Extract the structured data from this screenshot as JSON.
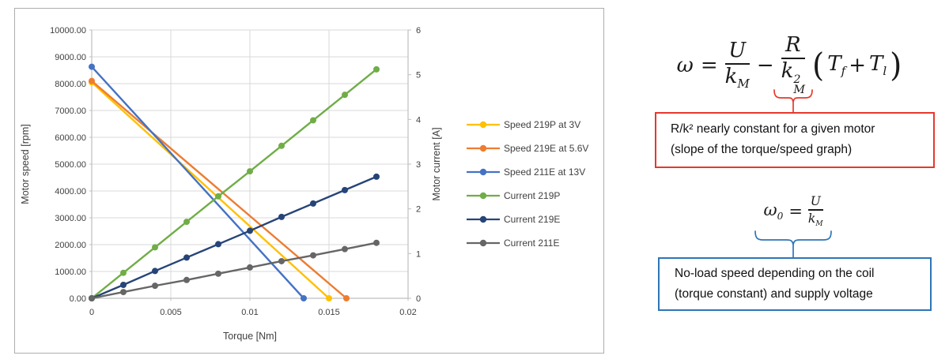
{
  "chart_data": {
    "type": "line",
    "title": "",
    "grid": true,
    "legend_position": "right",
    "x_axis": {
      "title": "Torque [Nm]",
      "min": 0,
      "max": 0.02,
      "tick_values": [
        0,
        0.005,
        0.01,
        0.015,
        0.02
      ],
      "tick_labels": [
        "0",
        "0.005",
        "0.01",
        "0.015",
        "0.02"
      ]
    },
    "left_axis": {
      "title": "Motor speed [rpm]",
      "min": 0,
      "max": 10000,
      "tick_values": [
        0,
        1000,
        2000,
        3000,
        4000,
        5000,
        6000,
        7000,
        8000,
        9000,
        10000
      ],
      "tick_labels": [
        "0.00",
        "1000.00",
        "2000.00",
        "3000.00",
        "4000.00",
        "5000.00",
        "6000.00",
        "7000.00",
        "8000.00",
        "9000.00",
        "10000.00"
      ]
    },
    "right_axis": {
      "title": "Motor current [A]",
      "min": 0,
      "max": 6,
      "tick_values": [
        0,
        1,
        2,
        3,
        4,
        5,
        6
      ],
      "tick_labels": [
        "0",
        "1",
        "2",
        "3",
        "4",
        "5",
        "6"
      ]
    },
    "series": [
      {
        "name": "Speed 219P at 3V",
        "axis": "left",
        "color": "#FFC000",
        "x": [
          0,
          0.015
        ],
        "y": [
          8050,
          0
        ]
      },
      {
        "name": "Speed 219E at 5.6V",
        "axis": "left",
        "color": "#ED7D31",
        "x": [
          0,
          0.0161
        ],
        "y": [
          8100,
          0
        ]
      },
      {
        "name": "Speed 211E at 13V",
        "axis": "left",
        "color": "#4472C4",
        "x": [
          0,
          0.0134
        ],
        "y": [
          8630,
          0
        ]
      },
      {
        "name": "Current 219P",
        "axis": "right",
        "color": "#70AD47",
        "x": [
          0,
          0.002,
          0.004,
          0.006,
          0.008,
          0.01,
          0.012,
          0.014,
          0.016,
          0.018
        ],
        "y": [
          0,
          0.57,
          1.14,
          1.71,
          2.28,
          2.84,
          3.41,
          3.98,
          4.55,
          5.12
        ]
      },
      {
        "name": "Current 219E",
        "axis": "right",
        "color": "#264478",
        "x": [
          0,
          0.002,
          0.004,
          0.006,
          0.008,
          0.01,
          0.012,
          0.014,
          0.016,
          0.018
        ],
        "y": [
          0,
          0.3,
          0.61,
          0.91,
          1.21,
          1.51,
          1.82,
          2.12,
          2.42,
          2.72
        ]
      },
      {
        "name": "Current 211E",
        "axis": "right",
        "color": "#666666",
        "x": [
          0,
          0.002,
          0.004,
          0.006,
          0.008,
          0.01,
          0.012,
          0.014,
          0.016,
          0.018
        ],
        "y": [
          0,
          0.14,
          0.28,
          0.41,
          0.55,
          0.69,
          0.83,
          0.96,
          1.1,
          1.24
        ]
      }
    ]
  },
  "formulas": {
    "speed": {
      "omega": "ω",
      "equals": "=",
      "u": "U",
      "k": "k",
      "m_sub": "M",
      "minus": "−",
      "r": "R",
      "two_sup": "2",
      "open_paren": "(",
      "t": "T",
      "f_sub": "f",
      "plus": "+",
      "l_sub": "l",
      "close_paren": ")"
    },
    "no_load": {
      "omega": "ω",
      "zero_sub": "0",
      "equals": "=",
      "u": "U",
      "k": "k",
      "m_sub": "M"
    }
  },
  "notes": {
    "slope": {
      "line1": "R/k² nearly constant for a given motor",
      "line2": "(slope of the torque/speed graph)"
    },
    "no_load": {
      "line1": "No-load speed depending on the coil",
      "line2": "(torque constant) and supply voltage"
    }
  },
  "colors": {
    "red_accent": "#e6382d",
    "blue_accent": "#2e75b6",
    "gridline": "#d9d9d9",
    "axis_line": "#bfbfbf",
    "tick_text": "#404040"
  }
}
